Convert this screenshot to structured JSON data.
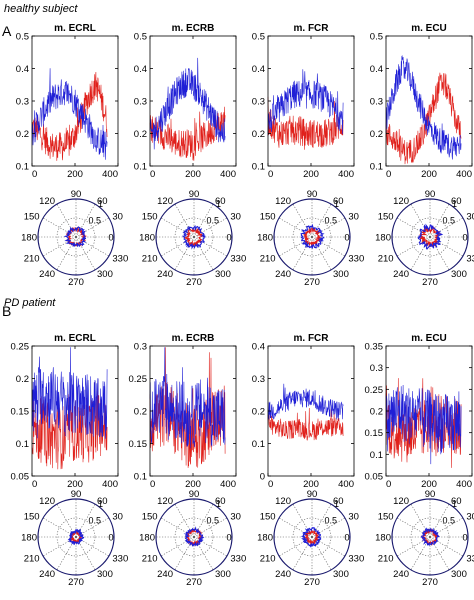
{
  "figure": {
    "panel_a_label": "A",
    "panel_b_label": "B",
    "panel_a_title": "healthy subject",
    "panel_b_title": "PD patient"
  },
  "colors": {
    "series_a": "#e0201b",
    "series_b": "#1f1fd6",
    "polar_ring": "#1a1a6e",
    "axes": "#000000"
  },
  "chart_data": [
    {
      "type": "line",
      "panel": "A",
      "title": "m. ECRL",
      "x": [
        0,
        25,
        50,
        75,
        100,
        125,
        150,
        175,
        200,
        225,
        250,
        275,
        300,
        325,
        350
      ],
      "series": [
        {
          "values": [
            0.22,
            0.21,
            0.19,
            0.17,
            0.16,
            0.16,
            0.16,
            0.17,
            0.2,
            0.24,
            0.29,
            0.33,
            0.35,
            0.3,
            0.23
          ]
        },
        {
          "values": [
            0.2,
            0.23,
            0.26,
            0.29,
            0.31,
            0.32,
            0.33,
            0.32,
            0.3,
            0.27,
            0.24,
            0.21,
            0.18,
            0.17,
            0.16
          ]
        }
      ],
      "noise": 0.045,
      "xlim": [
        0,
        400
      ],
      "ylim": [
        0.1,
        0.5
      ],
      "xticks": [
        0,
        200,
        400
      ],
      "yticks": [
        0.1,
        0.2,
        0.3,
        0.4,
        0.5
      ],
      "xtick_labels": [
        "0",
        "200",
        "400"
      ],
      "ytick_labels": [
        "0.1",
        "0.2",
        "0.3",
        "0.4",
        "0.5"
      ]
    },
    {
      "type": "line",
      "panel": "A",
      "title": "m. ECRB",
      "x": [
        0,
        25,
        50,
        75,
        100,
        125,
        150,
        175,
        200,
        225,
        250,
        275,
        300,
        325,
        350
      ],
      "series": [
        {
          "values": [
            0.22,
            0.21,
            0.2,
            0.19,
            0.18,
            0.17,
            0.17,
            0.17,
            0.17,
            0.18,
            0.19,
            0.2,
            0.22,
            0.23,
            0.24
          ]
        },
        {
          "values": [
            0.2,
            0.21,
            0.24,
            0.27,
            0.3,
            0.33,
            0.35,
            0.36,
            0.35,
            0.33,
            0.3,
            0.27,
            0.24,
            0.21,
            0.2
          ]
        }
      ],
      "noise": 0.045,
      "xlim": [
        0,
        400
      ],
      "ylim": [
        0.1,
        0.5
      ],
      "xticks": [
        0,
        200,
        400
      ],
      "yticks": [
        0.1,
        0.2,
        0.3,
        0.4,
        0.5
      ],
      "xtick_labels": [
        "0",
        "200",
        "400"
      ],
      "ytick_labels": [
        "0.1",
        "0.2",
        "0.3",
        "0.4",
        "0.5"
      ]
    },
    {
      "type": "line",
      "panel": "A",
      "title": "m. FCR",
      "x": [
        0,
        25,
        50,
        75,
        100,
        125,
        150,
        175,
        200,
        225,
        250,
        275,
        300,
        325,
        350
      ],
      "series": [
        {
          "values": [
            0.24,
            0.22,
            0.2,
            0.2,
            0.21,
            0.21,
            0.21,
            0.2,
            0.2,
            0.2,
            0.2,
            0.2,
            0.21,
            0.22,
            0.23
          ]
        },
        {
          "values": [
            0.23,
            0.25,
            0.27,
            0.29,
            0.31,
            0.32,
            0.32,
            0.32,
            0.32,
            0.32,
            0.31,
            0.3,
            0.28,
            0.26,
            0.24
          ]
        }
      ],
      "noise": 0.045,
      "xlim": [
        0,
        400
      ],
      "ylim": [
        0.1,
        0.5
      ],
      "xticks": [
        0,
        200,
        400
      ],
      "yticks": [
        0.1,
        0.2,
        0.3,
        0.4,
        0.5
      ],
      "xtick_labels": [
        "0",
        "200",
        "400"
      ],
      "ytick_labels": [
        "0.1",
        "0.2",
        "0.3",
        "0.4",
        "0.5"
      ]
    },
    {
      "type": "line",
      "panel": "A",
      "title": "m. ECU",
      "x": [
        0,
        25,
        50,
        75,
        100,
        125,
        150,
        175,
        200,
        225,
        250,
        275,
        300,
        325,
        350
      ],
      "series": [
        {
          "values": [
            0.2,
            0.19,
            0.17,
            0.15,
            0.14,
            0.15,
            0.17,
            0.2,
            0.25,
            0.3,
            0.35,
            0.35,
            0.3,
            0.24,
            0.2
          ]
        },
        {
          "values": [
            0.24,
            0.3,
            0.36,
            0.4,
            0.39,
            0.35,
            0.3,
            0.26,
            0.22,
            0.2,
            0.18,
            0.17,
            0.16,
            0.16,
            0.18
          ]
        }
      ],
      "noise": 0.04,
      "xlim": [
        0,
        400
      ],
      "ylim": [
        0.1,
        0.5
      ],
      "xticks": [
        0,
        200,
        400
      ],
      "yticks": [
        0.1,
        0.2,
        0.3,
        0.4,
        0.5
      ],
      "xtick_labels": [
        "0",
        "200",
        "400"
      ],
      "ytick_labels": [
        "0.1",
        "0.2",
        "0.3",
        "0.4",
        "0.5"
      ]
    },
    {
      "type": "line",
      "panel": "B",
      "title": "m. ECRL",
      "x": [
        0,
        25,
        50,
        75,
        100,
        125,
        150,
        175,
        200,
        225,
        250,
        275,
        300,
        325,
        350
      ],
      "series": [
        {
          "values": [
            0.13,
            0.12,
            0.12,
            0.11,
            0.11,
            0.11,
            0.11,
            0.12,
            0.12,
            0.12,
            0.12,
            0.12,
            0.13,
            0.13,
            0.12
          ]
        },
        {
          "values": [
            0.16,
            0.17,
            0.18,
            0.17,
            0.17,
            0.17,
            0.16,
            0.16,
            0.16,
            0.16,
            0.16,
            0.16,
            0.15,
            0.15,
            0.15
          ]
        }
      ],
      "noise": 0.05,
      "xlim": [
        0,
        400
      ],
      "ylim": [
        0.05,
        0.25
      ],
      "xticks": [
        0,
        200,
        400
      ],
      "yticks": [
        0.05,
        0.1,
        0.15,
        0.2,
        0.25
      ],
      "xtick_labels": [
        "0",
        "200",
        "400"
      ],
      "ytick_labels": [
        "0.05",
        "0.1",
        "0.15",
        "0.2",
        "0.25"
      ]
    },
    {
      "type": "line",
      "panel": "B",
      "title": "m. ECRB",
      "x": [
        0,
        25,
        50,
        75,
        100,
        125,
        150,
        175,
        200,
        225,
        250,
        275,
        300,
        325,
        350
      ],
      "series": [
        {
          "values": [
            0.18,
            0.19,
            0.19,
            0.2,
            0.19,
            0.18,
            0.17,
            0.16,
            0.16,
            0.16,
            0.17,
            0.18,
            0.19,
            0.19,
            0.18
          ]
        },
        {
          "values": [
            0.2,
            0.2,
            0.21,
            0.21,
            0.2,
            0.2,
            0.2,
            0.19,
            0.19,
            0.2,
            0.2,
            0.2,
            0.19,
            0.19,
            0.19
          ]
        }
      ],
      "noise": 0.05,
      "xlim": [
        0,
        400
      ],
      "ylim": [
        0.1,
        0.3
      ],
      "xticks": [
        0,
        200,
        400
      ],
      "yticks": [
        0.1,
        0.15,
        0.2,
        0.25,
        0.3
      ],
      "xtick_labels": [
        "0",
        "200",
        "400"
      ],
      "ytick_labels": [
        "0.1",
        "0.15",
        "0.2",
        "0.25",
        "0.3"
      ]
    },
    {
      "type": "line",
      "panel": "B",
      "title": "m. FCR",
      "x": [
        0,
        25,
        50,
        75,
        100,
        125,
        150,
        175,
        200,
        225,
        250,
        275,
        300,
        325,
        350
      ],
      "series": [
        {
          "values": [
            0.17,
            0.15,
            0.15,
            0.14,
            0.14,
            0.15,
            0.15,
            0.14,
            0.14,
            0.14,
            0.15,
            0.15,
            0.15,
            0.15,
            0.15
          ]
        },
        {
          "values": [
            0.2,
            0.2,
            0.21,
            0.22,
            0.23,
            0.24,
            0.24,
            0.24,
            0.24,
            0.23,
            0.22,
            0.21,
            0.21,
            0.2,
            0.2
          ]
        }
      ],
      "noise": 0.03,
      "xlim": [
        0,
        400
      ],
      "ylim": [
        0.0,
        0.4
      ],
      "xticks": [
        0,
        200,
        400
      ],
      "yticks": [
        0.0,
        0.1,
        0.2,
        0.3,
        0.4
      ],
      "xtick_labels": [
        "0",
        "200",
        "400"
      ],
      "ytick_labels": [
        "0",
        "0.1",
        "0.2",
        "0.3",
        "0.4"
      ]
    },
    {
      "type": "line",
      "panel": "B",
      "title": "m. ECU",
      "x": [
        0,
        25,
        50,
        75,
        100,
        125,
        150,
        175,
        200,
        225,
        250,
        275,
        300,
        325,
        350
      ],
      "series": [
        {
          "values": [
            0.18,
            0.16,
            0.15,
            0.15,
            0.15,
            0.15,
            0.15,
            0.16,
            0.17,
            0.17,
            0.17,
            0.17,
            0.17,
            0.16,
            0.16
          ]
        },
        {
          "values": [
            0.17,
            0.19,
            0.2,
            0.2,
            0.19,
            0.19,
            0.19,
            0.18,
            0.18,
            0.18,
            0.17,
            0.17,
            0.17,
            0.17,
            0.17
          ]
        }
      ],
      "noise": 0.07,
      "xlim": [
        0,
        400
      ],
      "ylim": [
        0.05,
        0.35
      ],
      "xticks": [
        0,
        200,
        400
      ],
      "yticks": [
        0.05,
        0.1,
        0.15,
        0.2,
        0.25,
        0.3,
        0.35
      ],
      "xtick_labels": [
        "0",
        "200",
        "400"
      ],
      "ytick_labels": [
        "0.05",
        "0.1",
        "0.15",
        "0.2",
        "0.25",
        "0.3",
        "0.35"
      ]
    }
  ],
  "polar_data": [
    {
      "panel": "A",
      "column": "m. ECRL",
      "red_radius": 0.2,
      "blue_radius": 0.23,
      "red_jitter": 0.05,
      "blue_jitter": 0.05
    },
    {
      "panel": "A",
      "column": "m. ECRB",
      "red_radius": 0.18,
      "blue_radius": 0.25,
      "red_jitter": 0.05,
      "blue_jitter": 0.05
    },
    {
      "panel": "A",
      "column": "m. FCR",
      "red_radius": 0.18,
      "blue_radius": 0.26,
      "red_jitter": 0.05,
      "blue_jitter": 0.05
    },
    {
      "panel": "A",
      "column": "m. ECU",
      "red_radius": 0.2,
      "blue_radius": 0.26,
      "red_jitter": 0.07,
      "blue_jitter": 0.07
    },
    {
      "panel": "B",
      "column": "m. ECRL",
      "red_radius": 0.12,
      "blue_radius": 0.16,
      "red_jitter": 0.04,
      "blue_jitter": 0.04
    },
    {
      "panel": "B",
      "column": "m. ECRB",
      "red_radius": 0.17,
      "blue_radius": 0.2,
      "red_jitter": 0.04,
      "blue_jitter": 0.04
    },
    {
      "panel": "B",
      "column": "m. FCR",
      "red_radius": 0.14,
      "blue_radius": 0.21,
      "red_jitter": 0.04,
      "blue_jitter": 0.04
    },
    {
      "panel": "B",
      "column": "m. ECU",
      "red_radius": 0.16,
      "blue_radius": 0.19,
      "red_jitter": 0.04,
      "blue_jitter": 0.04
    }
  ],
  "polar_axes": {
    "radial_ticks": [
      0.5,
      1
    ],
    "radial_tick_labels": [
      "0.5",
      "1"
    ],
    "angle_labels": [
      "0",
      "30",
      "60",
      "90",
      "120",
      "150",
      "180",
      "210",
      "240",
      "270",
      "300",
      "330"
    ]
  }
}
